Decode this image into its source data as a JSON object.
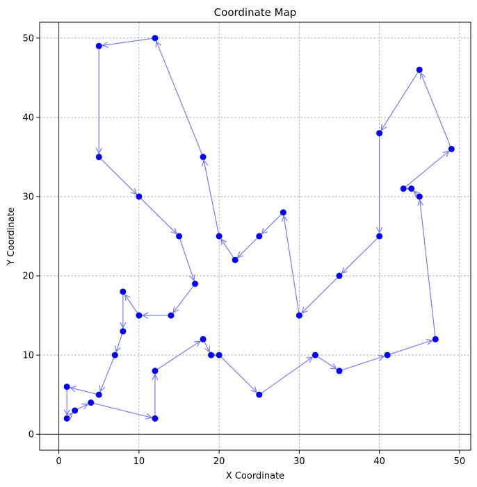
{
  "chart_data": {
    "type": "line",
    "title": "Coordinate Map",
    "xlabel": "X Coordinate",
    "ylabel": "Y Coordinate",
    "xlim": [
      -2.4,
      51.4
    ],
    "ylim": [
      -2.0,
      52.0
    ],
    "xticks": [
      0,
      10,
      20,
      30,
      40,
      50
    ],
    "yticks": [
      0,
      10,
      20,
      30,
      40,
      50
    ],
    "grid": true,
    "zero_lines": true,
    "colors": {
      "point": "#0000ff",
      "path": "#7777ff",
      "grid": "#888888"
    },
    "points": [
      [
        12,
        2
      ],
      [
        12,
        8
      ],
      [
        18,
        12
      ],
      [
        19,
        10
      ],
      [
        20,
        10
      ],
      [
        25,
        5
      ],
      [
        32,
        10
      ],
      [
        35,
        8
      ],
      [
        41,
        10
      ],
      [
        47,
        12
      ],
      [
        45,
        30
      ],
      [
        44,
        31
      ],
      [
        43,
        31
      ],
      [
        49,
        36
      ],
      [
        45,
        46
      ],
      [
        40,
        38
      ],
      [
        40,
        25
      ],
      [
        35,
        20
      ],
      [
        30,
        15
      ],
      [
        28,
        28
      ],
      [
        25,
        25
      ],
      [
        22,
        22
      ],
      [
        20,
        25
      ],
      [
        18,
        35
      ],
      [
        12,
        50
      ],
      [
        5,
        49
      ],
      [
        5,
        35
      ],
      [
        10,
        30
      ],
      [
        15,
        25
      ],
      [
        17,
        19
      ],
      [
        14,
        15
      ],
      [
        10,
        15
      ],
      [
        8,
        18
      ],
      [
        8,
        13
      ],
      [
        7,
        10
      ],
      [
        5,
        5
      ],
      [
        1,
        6
      ],
      [
        1,
        2
      ],
      [
        2,
        3
      ],
      [
        4,
        4
      ],
      [
        12,
        2
      ]
    ]
  }
}
